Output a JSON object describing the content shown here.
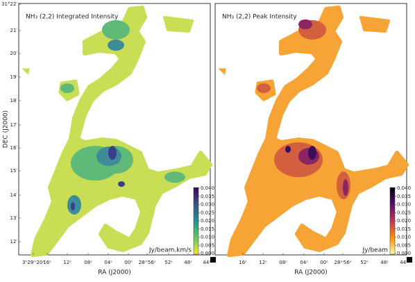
{
  "figure": {
    "panels": [
      {
        "title": "NH₃ (2,2) Integrated Intensity",
        "colorbar_ticks": [
          "0.040",
          "0.035",
          "0.030",
          "0.025",
          "0.020",
          "0.015",
          "0.010",
          "0.005",
          "0.000"
        ],
        "colorbar_label": "Jy/beam.km/s",
        "x_ticks": [
          "3ʰ29ᵐ20ˢ",
          "16ˢ",
          "12ˢ",
          "08ˢ",
          "04ˢ",
          "00ˢ",
          "28ᵐ56ˢ",
          "52ˢ",
          "48ˢ",
          "44ˢ"
        ],
        "x_label": "RA (J2000)"
      },
      {
        "title": "NH₃ (2,2) Peak Intensity",
        "colorbar_ticks": [
          "0.040",
          "0.035",
          "0.030",
          "0.025",
          "0.020",
          "0.015",
          "0.010",
          "0.005",
          "0.000"
        ],
        "colorbar_label": "Jy/beam",
        "x_ticks": [
          "16ˢ",
          "12ˢ",
          "08ˢ",
          "04ˢ",
          "00ˢ",
          "28ᵐ56ˢ",
          "52ˢ",
          "48ˢ",
          "44ˢ"
        ],
        "x_label": "RA (J2000)"
      }
    ],
    "y_ticks": [
      "31°22′",
      "21′",
      "20′",
      "19′",
      "18′",
      "17′",
      "16′",
      "15′",
      "14′",
      "13′",
      "12′"
    ],
    "y_label": "DEC (J2000)"
  }
}
